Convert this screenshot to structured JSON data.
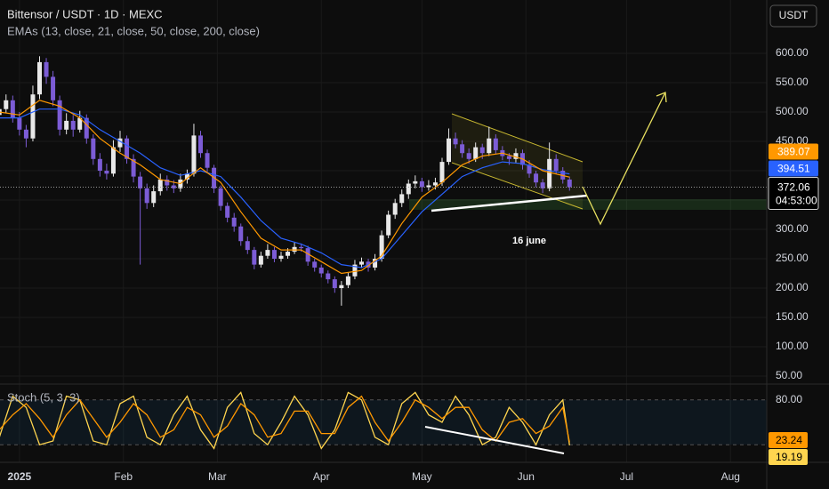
{
  "chart_data": [
    {
      "type": "candlestick",
      "title": "Bittensor / USDT · 1D · MEXC",
      "subtitle": "EMAs (13, close, 21, close, 50, close, 200, close)",
      "currency_button": "USDT",
      "annotation": "16 june",
      "countdown": "04:53:00",
      "up_color": "#e8e8e8",
      "down_color": "#7c5cd6",
      "grid": true,
      "xlim": [
        -5.8,
        222.8
      ],
      "xticks": [
        {
          "value": 0,
          "label": "2025"
        },
        {
          "value": 31,
          "label": "Feb"
        },
        {
          "value": 59,
          "label": "Mar"
        },
        {
          "value": 90,
          "label": "Apr"
        },
        {
          "value": 120,
          "label": "May"
        },
        {
          "value": 151,
          "label": "Jun"
        },
        {
          "value": 181,
          "label": "Jul"
        },
        {
          "value": 212,
          "label": "Aug"
        }
      ],
      "ylim": [
        36.4,
        690.9
      ],
      "yticks": [
        {
          "value": 50,
          "label": "50.00"
        },
        {
          "value": 100,
          "label": "100.00"
        },
        {
          "value": 150,
          "label": "150.00"
        },
        {
          "value": 200,
          "label": "200.00"
        },
        {
          "value": 250,
          "label": "250.00"
        },
        {
          "value": 300,
          "label": "300.00"
        },
        {
          "value": 350,
          "label": "350.00"
        },
        {
          "value": 400,
          "label": "400.00"
        },
        {
          "value": 450,
          "label": "450.00"
        },
        {
          "value": 500,
          "label": "500.00"
        },
        {
          "value": 550,
          "label": "550.00"
        },
        {
          "value": 600,
          "label": "600.00"
        }
      ],
      "x": [
        -6,
        -4,
        -2,
        0,
        2,
        4,
        6,
        8,
        10,
        12,
        14,
        16,
        18,
        20,
        22,
        24,
        26,
        28,
        30,
        32,
        34,
        36,
        38,
        40,
        42,
        44,
        46,
        48,
        50,
        52,
        54,
        56,
        58,
        60,
        62,
        64,
        66,
        68,
        70,
        72,
        74,
        76,
        78,
        80,
        82,
        84,
        86,
        88,
        90,
        92,
        94,
        96,
        98,
        100,
        102,
        104,
        106,
        108,
        110,
        112,
        114,
        116,
        118,
        120,
        122,
        124,
        126,
        128,
        130,
        132,
        134,
        136,
        138,
        140,
        142,
        144,
        146,
        148,
        150,
        152,
        154,
        156,
        158,
        160,
        162,
        164
      ],
      "ohlc": [
        [
          495,
          512,
          485,
          505
        ],
        [
          505,
          530,
          498,
          520
        ],
        [
          520,
          528,
          482,
          490
        ],
        [
          490,
          500,
          460,
          470
        ],
        [
          470,
          478,
          440,
          455
        ],
        [
          455,
          545,
          450,
          530
        ],
        [
          530,
          595,
          522,
          585
        ],
        [
          585,
          592,
          548,
          560
        ],
        [
          560,
          570,
          510,
          520
        ],
        [
          520,
          528,
          460,
          470
        ],
        [
          470,
          498,
          462,
          485
        ],
        [
          485,
          495,
          458,
          470
        ],
        [
          470,
          502,
          465,
          490
        ],
        [
          490,
          496,
          446,
          455
        ],
        [
          455,
          462,
          410,
          420
        ],
        [
          420,
          430,
          390,
          400
        ],
        [
          400,
          412,
          385,
          395
        ],
        [
          395,
          452,
          390,
          440
        ],
        [
          440,
          468,
          432,
          455
        ],
        [
          455,
          460,
          412,
          420
        ],
        [
          420,
          428,
          380,
          390
        ],
        [
          390,
          398,
          240,
          370
        ],
        [
          370,
          378,
          335,
          345
        ],
        [
          345,
          375,
          338,
          365
        ],
        [
          365,
          395,
          358,
          385
        ],
        [
          385,
          392,
          366,
          375
        ],
        [
          375,
          384,
          362,
          370
        ],
        [
          370,
          395,
          364,
          385
        ],
        [
          385,
          402,
          378,
          395
        ],
        [
          395,
          480,
          390,
          460
        ],
        [
          460,
          468,
          422,
          430
        ],
        [
          430,
          436,
          398,
          405
        ],
        [
          405,
          410,
          362,
          370
        ],
        [
          370,
          375,
          332,
          340
        ],
        [
          340,
          346,
          312,
          320
        ],
        [
          320,
          328,
          296,
          305
        ],
        [
          305,
          310,
          272,
          280
        ],
        [
          280,
          288,
          258,
          265
        ],
        [
          265,
          270,
          232,
          240
        ],
        [
          240,
          262,
          235,
          255
        ],
        [
          255,
          275,
          250,
          265
        ],
        [
          265,
          270,
          244,
          250
        ],
        [
          250,
          262,
          245,
          255
        ],
        [
          255,
          268,
          250,
          262
        ],
        [
          262,
          278,
          258,
          270
        ],
        [
          270,
          276,
          262,
          268
        ],
        [
          268,
          272,
          238,
          245
        ],
        [
          245,
          250,
          228,
          235
        ],
        [
          235,
          240,
          218,
          225
        ],
        [
          225,
          230,
          208,
          215
        ],
        [
          215,
          220,
          192,
          200
        ],
        [
          200,
          212,
          170,
          205
        ],
        [
          205,
          226,
          200,
          220
        ],
        [
          220,
          248,
          215,
          240
        ],
        [
          240,
          252,
          234,
          245
        ],
        [
          245,
          250,
          228,
          235
        ],
        [
          235,
          258,
          230,
          250
        ],
        [
          250,
          298,
          245,
          290
        ],
        [
          290,
          332,
          285,
          325
        ],
        [
          325,
          352,
          318,
          345
        ],
        [
          345,
          368,
          338,
          360
        ],
        [
          360,
          385,
          352,
          378
        ],
        [
          378,
          392,
          370,
          382
        ],
        [
          382,
          388,
          364,
          372
        ],
        [
          372,
          384,
          366,
          375
        ],
        [
          375,
          388,
          368,
          380
        ],
        [
          380,
          422,
          374,
          415
        ],
        [
          415,
          472,
          410,
          455
        ],
        [
          455,
          465,
          438,
          445
        ],
        [
          445,
          452,
          422,
          430
        ],
        [
          430,
          438,
          412,
          420
        ],
        [
          420,
          448,
          415,
          440
        ],
        [
          440,
          446,
          420,
          430
        ],
        [
          430,
          475,
          425,
          455
        ],
        [
          455,
          462,
          428,
          435
        ],
        [
          435,
          442,
          418,
          425
        ],
        [
          425,
          430,
          410,
          420
        ],
        [
          420,
          438,
          414,
          430
        ],
        [
          430,
          436,
          402,
          410
        ],
        [
          410,
          418,
          388,
          395
        ],
        [
          395,
          400,
          372,
          380
        ],
        [
          380,
          386,
          362,
          370
        ],
        [
          370,
          448,
          365,
          420
        ],
        [
          420,
          428,
          394,
          400
        ],
        [
          400,
          406,
          378,
          385
        ],
        [
          385,
          390,
          366,
          372.06
        ]
      ],
      "ema_x": [
        -6,
        0,
        6,
        12,
        18,
        24,
        30,
        36,
        42,
        48,
        54,
        60,
        66,
        72,
        78,
        84,
        90,
        96,
        102,
        108,
        114,
        120,
        126,
        132,
        138,
        144,
        150,
        156,
        164
      ],
      "ema_lines": [
        {
          "color": "#2962ff",
          "values": [
            490,
            490,
            505,
            505,
            495,
            470,
            450,
            430,
            405,
            392,
            400,
            390,
            355,
            315,
            285,
            275,
            260,
            240,
            235,
            250,
            290,
            330,
            360,
            390,
            405,
            415,
            412,
            402,
            394.51
          ]
        },
        {
          "color": "#ff9800",
          "values": [
            500,
            495,
            520,
            510,
            490,
            455,
            430,
            410,
            385,
            378,
            405,
            380,
            330,
            285,
            265,
            265,
            245,
            225,
            230,
            255,
            310,
            355,
            380,
            410,
            425,
            430,
            420,
            400,
            389.07
          ]
        }
      ]
    },
    {
      "type": "line",
      "title": "Stoch (5, 3, 3)",
      "ylim": [
        0,
        100
      ],
      "yticks": [
        {
          "value": 80,
          "label": "80.00"
        }
      ],
      "band": [
        20,
        80
      ],
      "x": [
        -6,
        -2,
        2,
        6,
        10,
        14,
        18,
        22,
        26,
        30,
        34,
        38,
        42,
        46,
        50,
        54,
        58,
        62,
        66,
        70,
        74,
        78,
        82,
        86,
        90,
        94,
        98,
        102,
        106,
        110,
        114,
        118,
        122,
        126,
        130,
        134,
        138,
        142,
        146,
        150,
        154,
        158,
        162,
        164
      ],
      "series": [
        {
          "color": "#ffd54f",
          "values": [
            30,
            85,
            70,
            20,
            25,
            85,
            80,
            25,
            20,
            75,
            85,
            30,
            20,
            60,
            85,
            40,
            15,
            70,
            90,
            35,
            20,
            50,
            85,
            60,
            15,
            40,
            90,
            80,
            30,
            20,
            75,
            90,
            60,
            50,
            85,
            60,
            20,
            30,
            70,
            50,
            20,
            60,
            80,
            19.19
          ]
        },
        {
          "color": "#ff9800",
          "values": [
            40,
            60,
            75,
            55,
            30,
            60,
            80,
            55,
            30,
            50,
            75,
            60,
            30,
            40,
            70,
            60,
            30,
            45,
            75,
            60,
            30,
            35,
            65,
            65,
            35,
            35,
            70,
            85,
            50,
            25,
            50,
            80,
            70,
            55,
            70,
            70,
            40,
            25,
            50,
            55,
            35,
            45,
            70,
            23.24
          ]
        }
      ]
    }
  ]
}
